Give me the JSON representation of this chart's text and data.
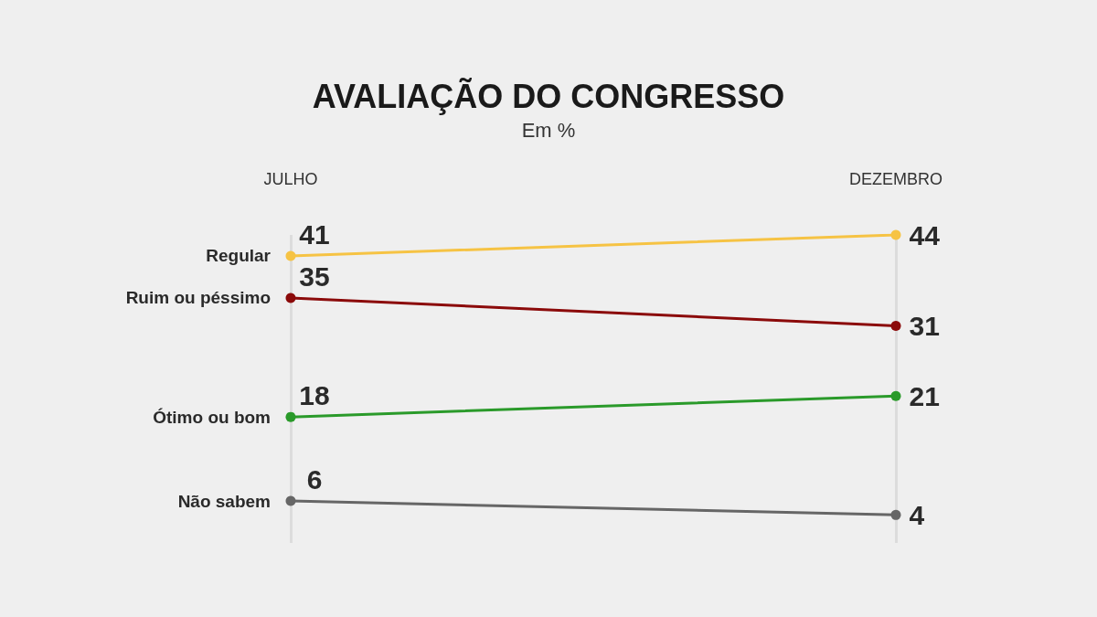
{
  "chart_data": {
    "type": "line",
    "title": "AVALIAÇÃO DO CONGRESSO",
    "subtitle": "Em %",
    "categories": [
      "JULHO",
      "DEZEMBRO"
    ],
    "series": [
      {
        "name": "Regular",
        "color": "#f6c344",
        "values": [
          41,
          44
        ]
      },
      {
        "name": "Ruim ou péssimo",
        "color": "#8b0a0a",
        "values": [
          35,
          31
        ]
      },
      {
        "name": "Ótimo ou bom",
        "color": "#2a9a2a",
        "values": [
          18,
          21
        ]
      },
      {
        "name": "Não sabem",
        "color": "#666666",
        "values": [
          6,
          4
        ]
      }
    ],
    "data_labels": true,
    "grid": "x",
    "marker": "circle",
    "line_style": "solid"
  }
}
